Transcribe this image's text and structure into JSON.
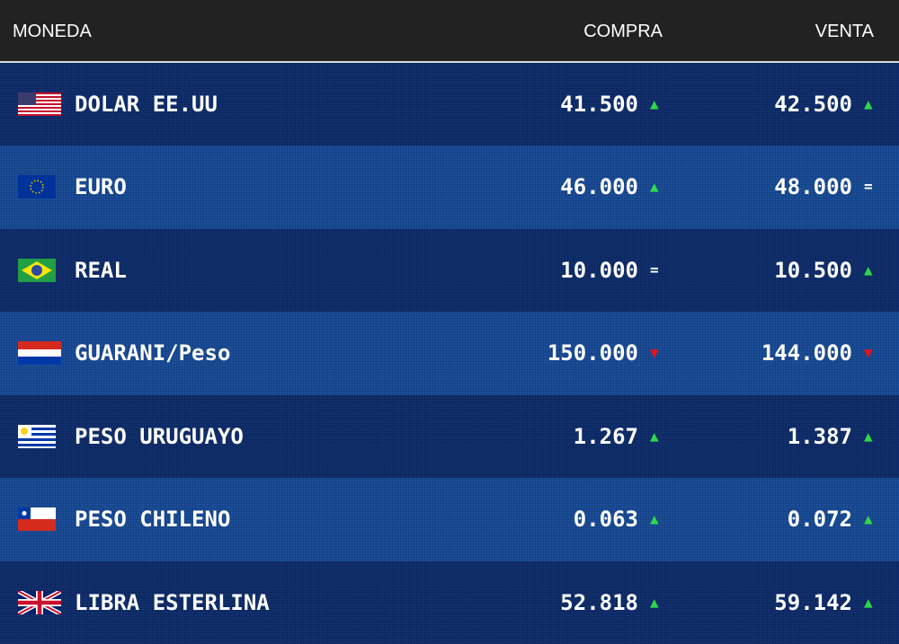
{
  "table": {
    "headers": [
      "MONEDA",
      "COMPRA",
      "VENTA"
    ],
    "rows": [
      {
        "name": "DOLAR EE.UU",
        "compra": "41.500",
        "compra_trend": {
          "symbol": "▲",
          "color": "#2ed84a"
        },
        "venta": "42.500",
        "venta_trend": {
          "symbol": "▲",
          "color": "#2ed84a"
        }
      },
      {
        "name": "EURO",
        "compra": "46.000",
        "compra_trend": {
          "symbol": "▲",
          "color": "#2ed84a"
        },
        "venta": "48.000",
        "venta_trend": {
          "symbol": "=",
          "color": "#ffffff"
        }
      },
      {
        "name": "REAL",
        "compra": "10.000",
        "compra_trend": {
          "symbol": "=",
          "color": "#ffffff"
        },
        "venta": "10.500",
        "venta_trend": {
          "symbol": "▲",
          "color": "#2ed84a"
        }
      },
      {
        "name": "GUARANI/Peso",
        "compra": "150.000",
        "compra_trend": {
          "symbol": "▼",
          "color": "#e8101c"
        },
        "venta": "144.000",
        "venta_trend": {
          "symbol": "▼",
          "color": "#e8101c"
        }
      },
      {
        "name": "PESO URUGUAYO",
        "compra": "1.267",
        "compra_trend": {
          "symbol": "▲",
          "color": "#2ed84a"
        },
        "venta": "1.387",
        "venta_trend": {
          "symbol": "▲",
          "color": "#2ed84a"
        }
      },
      {
        "name": "PESO CHILENO",
        "compra": "0.063",
        "compra_trend": {
          "symbol": "▲",
          "color": "#2ed84a"
        },
        "venta": "0.072",
        "venta_trend": {
          "symbol": "▲",
          "color": "#2ed84a"
        }
      },
      {
        "name": "LIBRA ESTERLINA",
        "compra": "52.818",
        "compra_trend": {
          "symbol": "▲",
          "color": "#2ed84a"
        },
        "venta": "59.142",
        "venta_trend": {
          "symbol": "▲",
          "color": "#2ed84a"
        }
      }
    ]
  }
}
